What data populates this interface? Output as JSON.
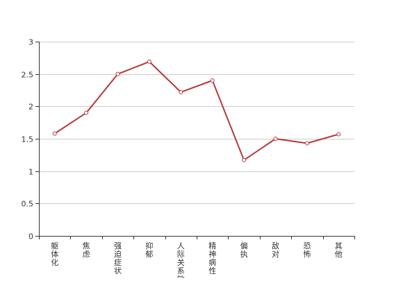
{
  "chart_data": {
    "type": "line",
    "title": "",
    "xlabel": "",
    "ylabel": "",
    "categories": [
      "躯体化",
      "焦虑",
      "强迫症状",
      "抑郁",
      "人际关系敏感",
      "精神病性",
      "偏执",
      "敌对",
      "恐怖",
      "其他"
    ],
    "series": [
      {
        "values": [
          1.58,
          1.9,
          2.5,
          2.69,
          2.22,
          2.4,
          1.17,
          1.5,
          1.43,
          1.57
        ]
      }
    ],
    "ylim": [
      0,
      3
    ],
    "yticks": [
      "0",
      "0.5",
      "1",
      "1.5",
      "2",
      "2.5",
      "3"
    ],
    "grid": true,
    "colors": {
      "line": "#b8373a",
      "grid": "#cccccc",
      "axis": "#333333",
      "marker_fill": "#ffffff"
    }
  }
}
